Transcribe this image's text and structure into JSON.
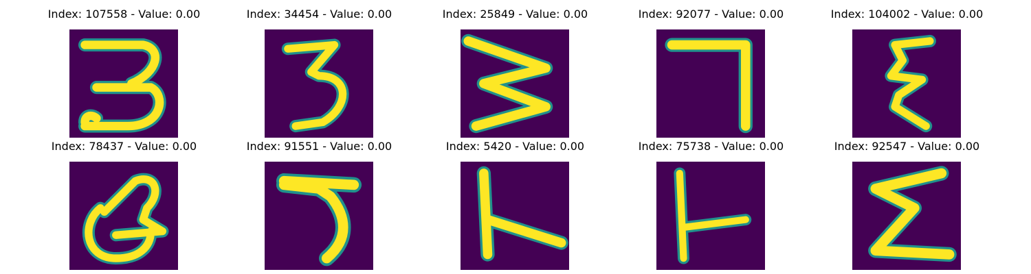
{
  "figure": {
    "panels": [
      {
        "title": "Index: 107558 - Value: 0.00",
        "glyph": "3",
        "icon": "handwritten-3"
      },
      {
        "title": "Index: 34454 - Value: 0.00",
        "glyph": "3",
        "icon": "handwritten-3"
      },
      {
        "title": "Index: 25849 - Value: 0.00",
        "glyph": "3",
        "icon": "handwritten-3-rotated"
      },
      {
        "title": "Index: 92077 - Value: 0.00",
        "glyph": "7",
        "icon": "handwritten-7"
      },
      {
        "title": "Index: 104002 - Value: 0.00",
        "glyph": "ε",
        "icon": "handwritten-epsilon"
      },
      {
        "title": "Index: 78437 - Value: 0.00",
        "glyph": "a",
        "icon": "handwritten-loop"
      },
      {
        "title": "Index: 91551 - Value: 0.00",
        "glyph": "5",
        "icon": "handwritten-5"
      },
      {
        "title": "Index: 5420 - Value: 0.00",
        "glyph": "人",
        "icon": "handwritten-stroke"
      },
      {
        "title": "Index: 75738 - Value: 0.00",
        "glyph": "⊢",
        "icon": "handwritten-stroke"
      },
      {
        "title": "Index: 92547 - Value: 0.00",
        "glyph": "Σ",
        "icon": "handwritten-sigma"
      }
    ],
    "colors": {
      "background": "#440154",
      "stroke": "#fde725",
      "edge": "#21918c"
    }
  }
}
